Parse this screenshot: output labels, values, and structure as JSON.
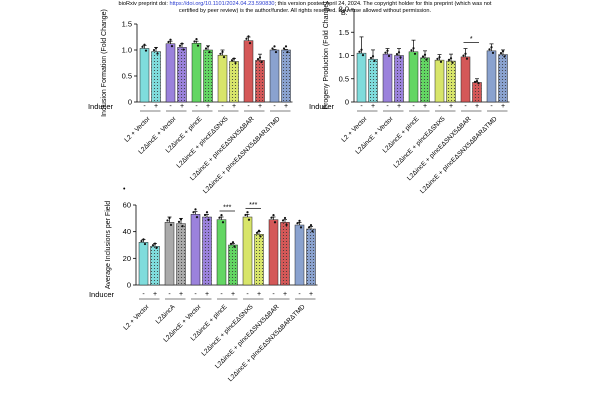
{
  "header": {
    "prefix": "bioRxiv preprint doi: ",
    "doi": "https://doi.org/10.1101/2024.04.23.590830",
    "suffix": "; this version posted April 24, 2024. The copyright holder for this preprint (which was not certified by peer review) is the author/funder. All rights reserved. No reuse allowed without permission."
  },
  "stray_mark": "•",
  "colors": {
    "cyan": "#7fdcdc",
    "purple": "#9b82dc",
    "grey": "#aaaaaa",
    "green": "#63d663",
    "yellow": "#d8e56a",
    "red": "#d45858",
    "blue": "#8aa2cf"
  },
  "chart_data": [
    {
      "id": "A",
      "type": "bar",
      "title": "",
      "ylabel": "Inclusion Formation (Fold Change)",
      "ylim": [
        0,
        1.5
      ],
      "yticks": [
        0,
        0.5,
        1.0,
        1.5
      ],
      "ytick_labels": [
        "0",
        "0.5",
        "1.0",
        "1.5"
      ],
      "inducer_label": "Inducer",
      "inducer": [
        "-",
        "+",
        "-",
        "+",
        "-",
        "+",
        "-",
        "+",
        "-",
        "+",
        "-",
        "+"
      ],
      "values": [
        1.03,
        0.97,
        1.12,
        1.05,
        1.13,
        1.0,
        0.9,
        0.78,
        1.18,
        0.8,
        1.0,
        1.0
      ],
      "errors": [
        0.06,
        0.08,
        0.05,
        0.07,
        0.04,
        0.08,
        0.1,
        0.06,
        0.07,
        0.12,
        0.01,
        0.01
      ],
      "colors": [
        "cyan",
        "cyan",
        "purple",
        "purple",
        "green",
        "green",
        "yellow",
        "yellow",
        "red",
        "red",
        "blue",
        "blue"
      ],
      "groups": [
        "L2 + Vector",
        "L2ΔincE + Vector",
        "L2ΔincE + pIncE",
        "L2ΔincE + pIncEΔSNX5",
        "L2ΔincE + pIncEΔSNX5ΔBAR",
        "L2ΔincE + pIncEΔSNX5ΔBARΔTMD"
      ],
      "significance": []
    },
    {
      "id": "B",
      "type": "bar",
      "title": "B.",
      "ylabel": "Progeny Production (Fold Change)",
      "ylim": [
        0,
        2.0
      ],
      "yticks": [
        0,
        0.5,
        1.0,
        1.5,
        2.0
      ],
      "ytick_labels": [
        "0",
        "0.5",
        "1.0",
        "1.5",
        "2.0"
      ],
      "inducer_label": "Inducer",
      "inducer": [
        "-",
        "+",
        "-",
        "+",
        "-",
        "+",
        "-",
        "+",
        "-",
        "+",
        "-",
        "+"
      ],
      "values": [
        1.05,
        0.92,
        1.03,
        1.0,
        1.08,
        0.95,
        0.9,
        0.88,
        0.97,
        0.42,
        1.1,
        1.02
      ],
      "errors": [
        0.35,
        0.2,
        0.12,
        0.15,
        0.25,
        0.15,
        0.12,
        0.15,
        0.18,
        0.08,
        0.15,
        0.1
      ],
      "colors": [
        "cyan",
        "cyan",
        "purple",
        "purple",
        "green",
        "green",
        "yellow",
        "yellow",
        "red",
        "red",
        "blue",
        "blue"
      ],
      "groups": [
        "L2 + Vector",
        "L2ΔincE + Vector",
        "L2ΔincE + pIncE",
        "L2ΔincE + pIncEΔSNX5",
        "L2ΔincE + pIncEΔSNX5ΔBAR",
        "L2ΔincE + pIncEΔSNX5ΔBARΔTMD"
      ],
      "significance": [
        {
          "from": 8,
          "to": 9,
          "label": "*"
        }
      ]
    },
    {
      "id": "C",
      "type": "bar",
      "title": "",
      "ylabel": "Average Inclusions per Field",
      "ylim": [
        0,
        60
      ],
      "yticks": [
        0,
        20,
        40,
        60
      ],
      "ytick_labels": [
        "0",
        "20",
        "40",
        "60"
      ],
      "inducer_label": "Inducer",
      "inducer": [
        "-",
        "+",
        "-",
        "+",
        "-",
        "+",
        "-",
        "+",
        "-",
        "+",
        "-",
        "+",
        "-",
        "+"
      ],
      "values": [
        32,
        29,
        47,
        46,
        53,
        51,
        49,
        30,
        51,
        38,
        49,
        47,
        45,
        42
      ],
      "errors": [
        2,
        2,
        4,
        4,
        2,
        2,
        2,
        1,
        2,
        2,
        2,
        2,
        2,
        2
      ],
      "colors": [
        "cyan",
        "cyan",
        "grey",
        "grey",
        "purple",
        "purple",
        "green",
        "green",
        "yellow",
        "yellow",
        "red",
        "red",
        "blue",
        "blue"
      ],
      "groups": [
        "L2 + Vector",
        "L2ΔincA",
        "L2ΔincE + Vector",
        "L2ΔincE + pIncE",
        "L2ΔincE + pIncEΔSNX5",
        "L2ΔincE + pIncEΔSNX5ΔBAR",
        "L2ΔincE + pIncEΔSNX5ΔBARΔTMD"
      ],
      "significance": [
        {
          "from": 6,
          "to": 7,
          "label": "***"
        },
        {
          "from": 8,
          "to": 9,
          "label": "***"
        }
      ]
    }
  ]
}
